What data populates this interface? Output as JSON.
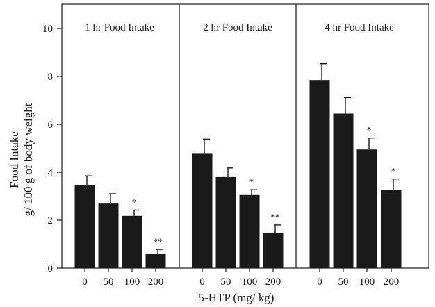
{
  "chart_data": {
    "type": "bar",
    "xlabel": "5-HTP (mg/ kg)",
    "ylabel": "Food Intake",
    "ylabel_line2": "g/ 100 g of body weight",
    "ylim": [
      0,
      11
    ],
    "yticks": [
      0,
      2,
      4,
      6,
      8,
      10
    ],
    "ytick_labels": [
      "0",
      "2",
      "4",
      "6",
      "8",
      "10"
    ],
    "categories": [
      "0",
      "50",
      "100",
      "200"
    ],
    "bar_color": "#1a1a1a",
    "grid": false,
    "panels": [
      {
        "title": "1 hr Food Intake",
        "values": [
          3.45,
          2.72,
          2.18,
          0.58
        ],
        "errors": [
          0.4,
          0.38,
          0.24,
          0.2
        ],
        "significance": [
          "",
          "",
          "*",
          "**"
        ]
      },
      {
        "title": "2 hr Food Intake",
        "values": [
          4.8,
          3.8,
          3.05,
          1.48
        ],
        "errors": [
          0.58,
          0.38,
          0.22,
          0.32
        ],
        "significance": [
          "",
          "",
          "*",
          "**"
        ]
      },
      {
        "title": "4 hr Food Intake",
        "values": [
          7.85,
          6.45,
          4.95,
          3.25
        ],
        "errors": [
          0.68,
          0.67,
          0.48,
          0.47
        ],
        "significance": [
          "",
          "",
          "*",
          "*"
        ]
      }
    ]
  }
}
